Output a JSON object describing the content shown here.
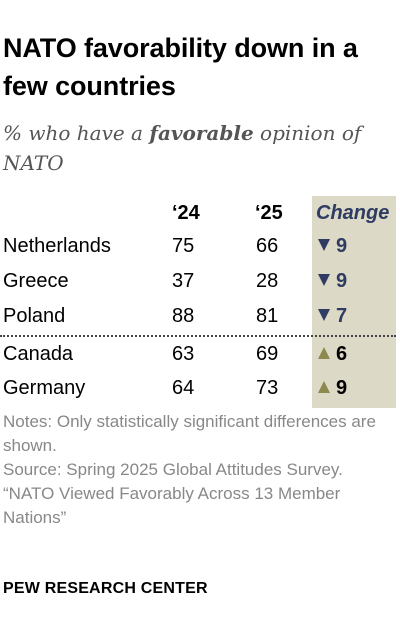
{
  "title": "NATO favorability down in a few countries",
  "subtitle": {
    "prefix": "% who have a ",
    "emphasis": "favorable",
    "suffix": " opinion of NATO"
  },
  "colors": {
    "change_column_bg": "#dcd9c6",
    "decrease": "#2f3b63",
    "increase": "#8e8a4e"
  },
  "chart_data": {
    "type": "table",
    "columns": [
      "‘24",
      "‘25",
      "Change"
    ],
    "rows": [
      {
        "country": "Netherlands",
        "y2024": "75",
        "y2025": "66",
        "change": "9",
        "direction": "down"
      },
      {
        "country": "Greece",
        "y2024": "37",
        "y2025": "28",
        "change": "9",
        "direction": "down"
      },
      {
        "country": "Poland",
        "y2024": "88",
        "y2025": "81",
        "change": "7",
        "direction": "down"
      },
      {
        "country": "Canada",
        "y2024": "63",
        "y2025": "69",
        "change": "6",
        "direction": "up"
      },
      {
        "country": "Germany",
        "y2024": "64",
        "y2025": "73",
        "change": "9",
        "direction": "up"
      }
    ]
  },
  "notes": {
    "note": "Notes: Only statistically significant differences are shown.",
    "source": "Source: Spring 2025 Global Attitudes Survey.",
    "report": "“NATO Viewed Favorably Across 13 Member Nations”"
  },
  "brand": "PEW RESEARCH CENTER"
}
